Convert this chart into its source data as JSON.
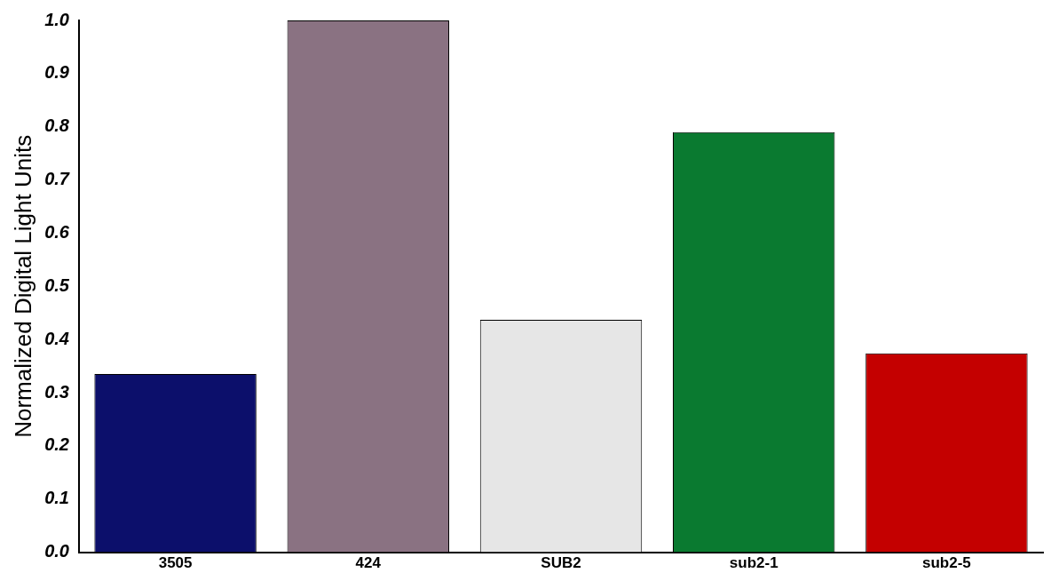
{
  "chart_data": {
    "type": "bar",
    "ylabel": "Normalized Digital Light Units",
    "categories": [
      "3505",
      "424",
      "SUB2",
      "sub2-1",
      "sub2-5"
    ],
    "values": [
      0.335,
      1.0,
      0.437,
      0.79,
      0.374
    ],
    "colors": [
      "#0c0f6b",
      "#8a7282",
      "#e6e6e6",
      "#0a7a30",
      "#c40000"
    ],
    "ylim": [
      0,
      1
    ],
    "yticks": [
      {
        "value": 0,
        "label": "0.0"
      },
      0.1,
      0.2,
      0.3,
      0.4,
      0.5,
      0.6,
      0.7,
      0.8,
      0.9,
      {
        "value": 1,
        "label": "1.0"
      }
    ],
    "grid": false,
    "legend": false
  }
}
